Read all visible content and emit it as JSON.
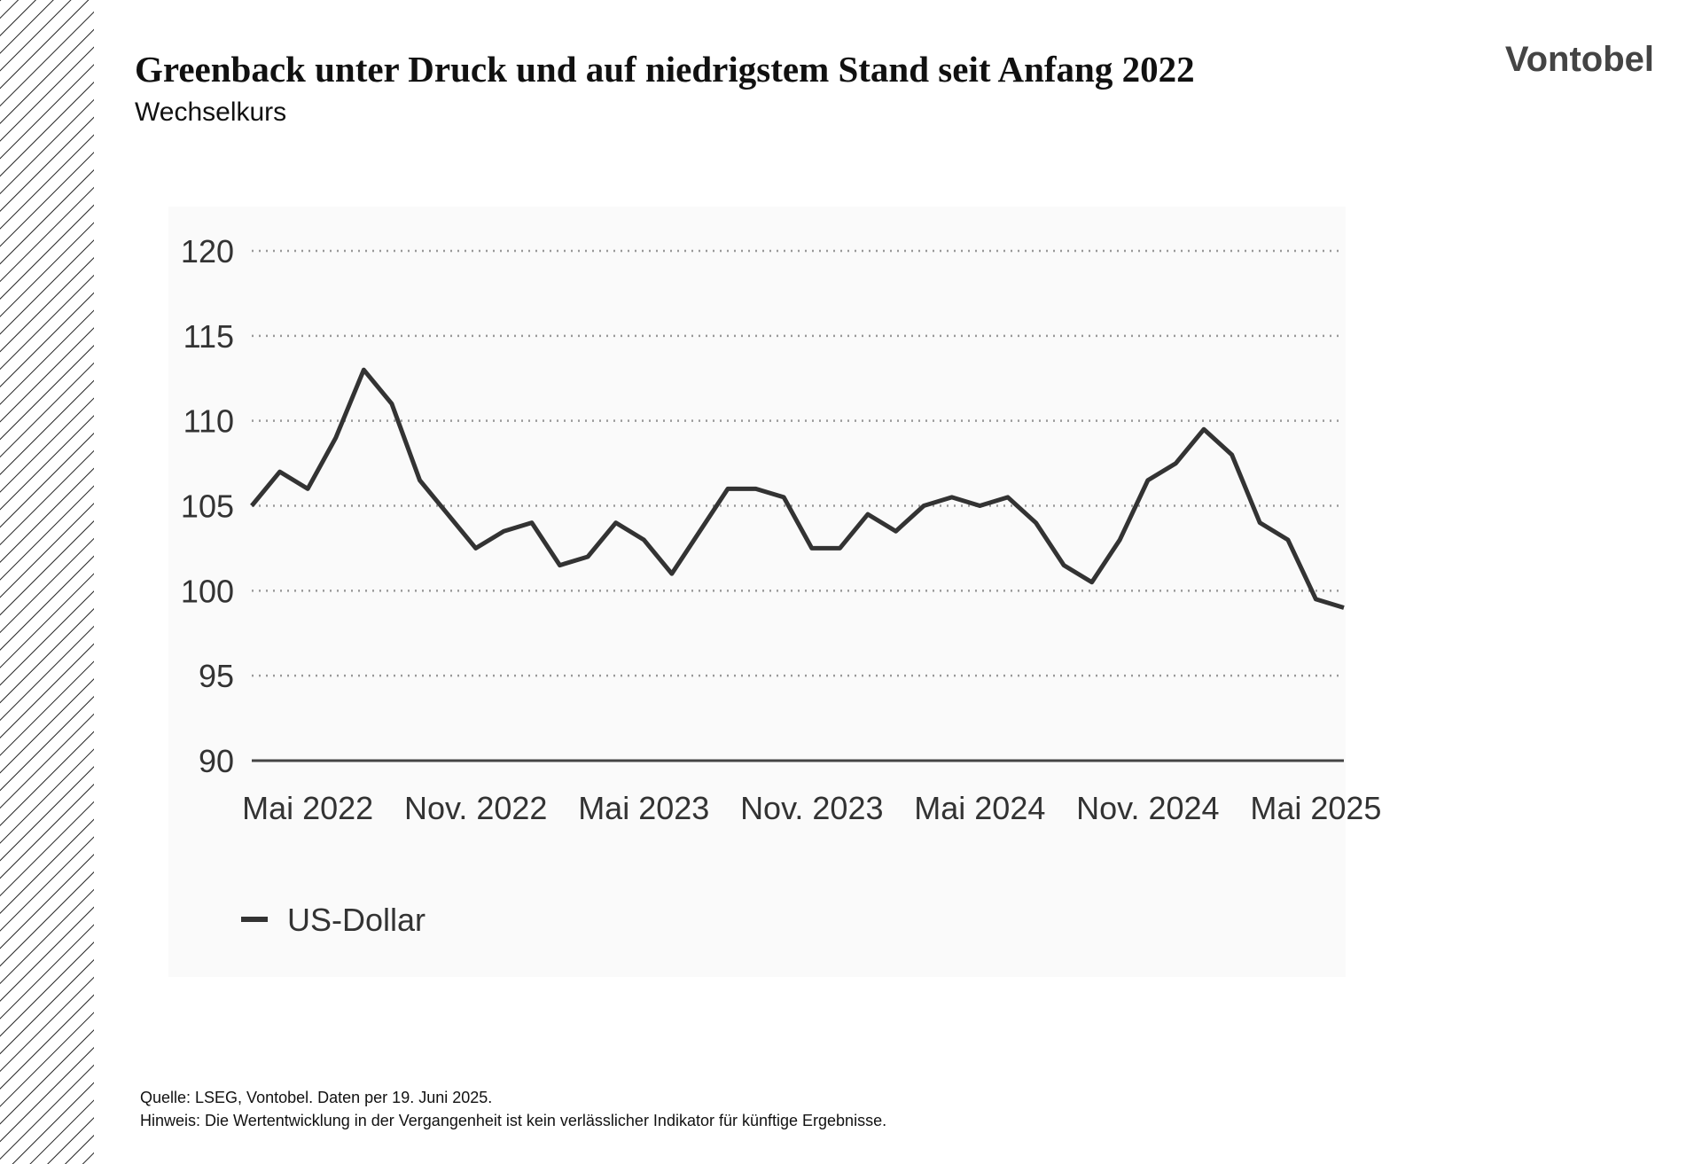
{
  "brand": "Vontobel",
  "notes": [
    "Quelle: LSEG, Vontobel. Daten per 19. Juni 2025.",
    "Hinweis: Die Wertentwicklung in der Vergangenheit ist kein verlässlicher Indikator für künftige Ergebnisse."
  ],
  "chart_data": {
    "type": "line",
    "title": "Greenback unter Druck und auf niedrigstem Stand seit Anfang 2022",
    "subtitle": "Wechselkurs",
    "x": [
      "2022-03",
      "2022-04",
      "2022-05",
      "2022-06",
      "2022-07",
      "2022-08",
      "2022-09",
      "2022-10",
      "2022-11",
      "2022-12",
      "2023-01",
      "2023-02",
      "2023-03",
      "2023-04",
      "2023-05",
      "2023-06",
      "2023-07",
      "2023-08",
      "2023-09",
      "2023-10",
      "2023-11",
      "2023-12",
      "2024-01",
      "2024-02",
      "2024-03",
      "2024-04",
      "2024-05",
      "2024-06",
      "2024-07",
      "2024-08",
      "2024-09",
      "2024-10",
      "2024-11",
      "2024-12",
      "2025-01",
      "2025-02",
      "2025-03",
      "2025-04",
      "2025-05",
      "2025-06"
    ],
    "series": [
      {
        "name": "US-Dollar",
        "color": "#333333",
        "values": [
          105,
          107,
          106,
          109,
          113,
          111,
          106.5,
          104.5,
          102.5,
          103.5,
          104,
          101.5,
          102,
          104,
          103,
          101,
          103.5,
          106,
          106,
          105.5,
          102.5,
          102.5,
          104.5,
          103.5,
          105,
          105.5,
          105,
          105.5,
          104,
          101.5,
          100.5,
          103,
          106.5,
          107.5,
          109.5,
          108,
          104,
          103,
          99.5,
          99
        ]
      }
    ],
    "xticks": [
      {
        "value": "2022-05",
        "label": "Mai 2022"
      },
      {
        "value": "2022-11",
        "label": "Nov. 2022"
      },
      {
        "value": "2023-05",
        "label": "Mai 2023"
      },
      {
        "value": "2023-11",
        "label": "Nov. 2023"
      },
      {
        "value": "2024-05",
        "label": "Mai 2024"
      },
      {
        "value": "2024-11",
        "label": "Nov. 2024"
      },
      {
        "value": "2025-05",
        "label": "Mai 2025"
      }
    ],
    "ylim": [
      90,
      120
    ],
    "yticks": [
      90,
      95,
      100,
      105,
      110,
      115,
      120
    ],
    "grid": true,
    "legend": "bottom-left"
  }
}
